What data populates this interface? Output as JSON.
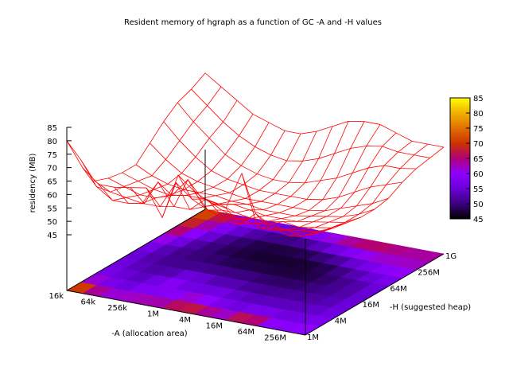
{
  "chart_data": {
    "type": "heatmap",
    "title": "Resident memory of hgraph as a function of GC -A and -H values",
    "zlabel": "residency (MB)",
    "xlabel": "-A (allocation area)",
    "ylabel": "-H (suggested heap)",
    "x_ticks": [
      "16k",
      "64k",
      "256k",
      "1M",
      "4M",
      "16M",
      "64M",
      "256M"
    ],
    "y_ticks": [
      "1M",
      "4M",
      "16M",
      "64M",
      "256M",
      "1G"
    ],
    "z_ticks": [
      "45",
      "50",
      "55",
      "60",
      "65",
      "70",
      "75",
      "80",
      "85"
    ],
    "zlim": [
      45,
      85
    ],
    "colorbar_ticks": [
      "45",
      "50",
      "55",
      "60",
      "65",
      "70",
      "75",
      "80",
      "85"
    ],
    "colorbar_range": [
      45,
      85
    ],
    "surface_color": "#ff0000",
    "palette": [
      "#000000",
      "#3b007f",
      "#6a00d9",
      "#8f00ff",
      "#b10076",
      "#cc3300",
      "#e07000",
      "#f0b000",
      "#ffff00"
    ],
    "grid_x": [
      "16k",
      "32k",
      "64k",
      "128k",
      "256k",
      "512k",
      "1M",
      "2M",
      "4M",
      "8M",
      "16M",
      "32M",
      "64M",
      "128M",
      "256M",
      "512M"
    ],
    "grid_y": [
      "1M",
      "2M",
      "4M",
      "8M",
      "16M",
      "32M",
      "64M",
      "128M",
      "256M",
      "512M",
      "1G"
    ],
    "values": [
      [
        80,
        71,
        66,
        66,
        67,
        68,
        58,
        75,
        70,
        67,
        66,
        80,
        61,
        62,
        60,
        63
      ],
      [
        70,
        61,
        57,
        57,
        58,
        58,
        68,
        63,
        60,
        58,
        57,
        62,
        57,
        58,
        57,
        60
      ],
      [
        59,
        56,
        55,
        54,
        63,
        55,
        55,
        60,
        57,
        55,
        54,
        55,
        54,
        55,
        55,
        58
      ],
      [
        57,
        55,
        53,
        53,
        55,
        62,
        53,
        55,
        53,
        52,
        52,
        53,
        52,
        53,
        54,
        57
      ],
      [
        56,
        54,
        52,
        51,
        52,
        52,
        51,
        52,
        51,
        50,
        50,
        50,
        51,
        52,
        53,
        56
      ],
      [
        56,
        53,
        51,
        50,
        50,
        50,
        49,
        49,
        48,
        48,
        48,
        49,
        50,
        51,
        53,
        56
      ],
      [
        61,
        56,
        52,
        50,
        49,
        48,
        47,
        47,
        47,
        47,
        47,
        48,
        50,
        52,
        54,
        57
      ],
      [
        66,
        60,
        55,
        51,
        49,
        48,
        47,
        47,
        47,
        47,
        48,
        50,
        53,
        56,
        58,
        60
      ],
      [
        70,
        64,
        59,
        54,
        51,
        49,
        48,
        48,
        49,
        51,
        53,
        56,
        59,
        61,
        61,
        62
      ],
      [
        72,
        67,
        62,
        58,
        55,
        53,
        52,
        53,
        55,
        58,
        61,
        63,
        64,
        63,
        63,
        63
      ],
      [
        75,
        71,
        67,
        63,
        61,
        59,
        59,
        61,
        64,
        67,
        68,
        68,
        66,
        64,
        64,
        64
      ]
    ]
  }
}
